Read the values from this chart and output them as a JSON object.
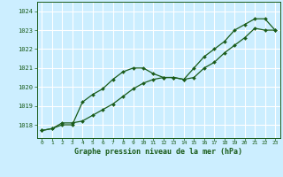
{
  "title": "Graphe pression niveau de la mer (hPa)",
  "background_color": "#cceeff",
  "grid_color": "#ffffff",
  "line_color": "#1a5c1a",
  "xlim": [
    -0.5,
    23.5
  ],
  "ylim": [
    1017.3,
    1024.5
  ],
  "yticks": [
    1018,
    1019,
    1020,
    1021,
    1022,
    1023,
    1024
  ],
  "xticks": [
    0,
    1,
    2,
    3,
    4,
    5,
    6,
    7,
    8,
    9,
    10,
    11,
    12,
    13,
    14,
    15,
    16,
    17,
    18,
    19,
    20,
    21,
    22,
    23
  ],
  "series1_x": [
    0,
    1,
    2,
    3,
    4,
    5,
    6,
    7,
    8,
    9,
    10,
    11,
    12,
    13,
    14,
    15,
    16,
    17,
    18,
    19,
    20,
    21,
    22,
    23
  ],
  "series1_y": [
    1017.7,
    1017.8,
    1018.0,
    1018.0,
    1019.2,
    1019.6,
    1019.9,
    1020.4,
    1020.8,
    1021.0,
    1021.0,
    1020.7,
    1020.5,
    1020.5,
    1020.4,
    1021.0,
    1021.6,
    1022.0,
    1022.4,
    1023.0,
    1023.3,
    1023.6,
    1023.6,
    1023.0
  ],
  "series2_x": [
    0,
    1,
    2,
    3,
    4,
    5,
    6,
    7,
    8,
    9,
    10,
    11,
    12,
    13,
    14,
    15,
    16,
    17,
    18,
    19,
    20,
    21,
    22,
    23
  ],
  "series2_y": [
    1017.7,
    1017.8,
    1018.1,
    1018.1,
    1018.2,
    1018.5,
    1018.8,
    1019.1,
    1019.5,
    1019.9,
    1020.2,
    1020.4,
    1020.5,
    1020.5,
    1020.4,
    1020.5,
    1021.0,
    1021.3,
    1021.8,
    1022.2,
    1022.6,
    1023.1,
    1023.0,
    1023.0
  ]
}
